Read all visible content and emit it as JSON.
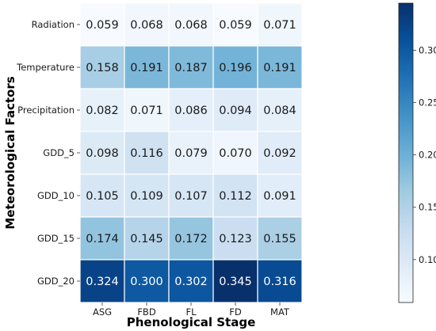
{
  "chart_data": {
    "type": "heatmap",
    "xlabel": "Phenological Stage",
    "ylabel": "Meteorological Factors",
    "x": [
      "ASG",
      "FBD",
      "FL",
      "FD",
      "MAT"
    ],
    "y": [
      "Radiation",
      "Temperature",
      "Precipitation",
      "GDD_5",
      "GDD_10",
      "GDD_15",
      "GDD_20"
    ],
    "values": [
      [
        0.059,
        0.068,
        0.068,
        0.059,
        0.071
      ],
      [
        0.158,
        0.191,
        0.187,
        0.196,
        0.191
      ],
      [
        0.082,
        0.071,
        0.086,
        0.094,
        0.084
      ],
      [
        0.098,
        0.116,
        0.079,
        0.07,
        0.092
      ],
      [
        0.105,
        0.109,
        0.107,
        0.112,
        0.091
      ],
      [
        0.174,
        0.145,
        0.172,
        0.123,
        0.155
      ],
      [
        0.324,
        0.3,
        0.302,
        0.345,
        0.316
      ]
    ],
    "value_labels": [
      [
        "0.059",
        "0.068",
        "0.068",
        "0.059",
        "0.071"
      ],
      [
        "0.158",
        "0.191",
        "0.187",
        "0.196",
        "0.191"
      ],
      [
        "0.082",
        "0.071",
        "0.086",
        "0.094",
        "0.084"
      ],
      [
        "0.098",
        "0.116",
        "0.079",
        "0.070",
        "0.092"
      ],
      [
        "0.105",
        "0.109",
        "0.107",
        "0.112",
        "0.091"
      ],
      [
        "0.174",
        "0.145",
        "0.172",
        "0.123",
        "0.155"
      ],
      [
        "0.324",
        "0.300",
        "0.302",
        "0.345",
        "0.316"
      ]
    ],
    "colormap": "Blues",
    "color_range": [
      0.059,
      0.345
    ],
    "colorbar_ticks": [
      0.1,
      0.15,
      0.2,
      0.25,
      0.3
    ],
    "colorbar_tick_labels": [
      "0.10",
      "0.15",
      "0.20",
      "0.25",
      "0.30"
    ],
    "colorbar_position": "right",
    "grid": false
  }
}
